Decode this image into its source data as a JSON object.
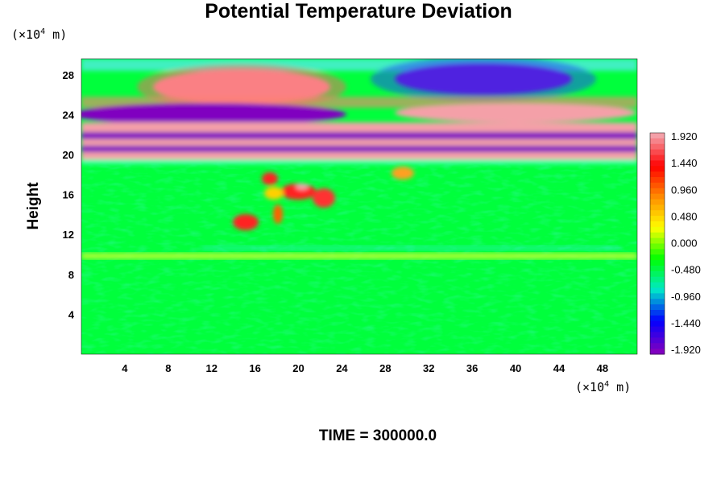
{
  "chart_data": {
    "type": "heatmap",
    "title": "Potential Temperature Deviation",
    "ylabel": "Height",
    "y_unit": {
      "prefix": "(×10",
      "exp": "4",
      "suffix": " m)"
    },
    "x_unit": {
      "prefix": "(×10",
      "exp": "4",
      "suffix": " m)"
    },
    "xlim": [
      0,
      51.2
    ],
    "ylim": [
      0,
      29.6
    ],
    "x_ticks": [
      4,
      8,
      12,
      16,
      20,
      24,
      28,
      32,
      36,
      40,
      44,
      48
    ],
    "y_ticks": [
      4,
      8,
      12,
      16,
      20,
      24,
      28
    ],
    "colorbar": {
      "min": -1.92,
      "max": 1.92,
      "labels": [
        "1.920",
        "1.440",
        "0.960",
        "0.480",
        "0.000",
        "-0.480",
        "-0.960",
        "-1.440",
        "-1.920"
      ],
      "colors": [
        "#f4a0a8",
        "#ff0000",
        "#ff8c00",
        "#ffff00",
        "#00ff00",
        "#00e8c8",
        "#0000ff",
        "#8000c0"
      ]
    },
    "footer": "TIME = 300000.0"
  }
}
